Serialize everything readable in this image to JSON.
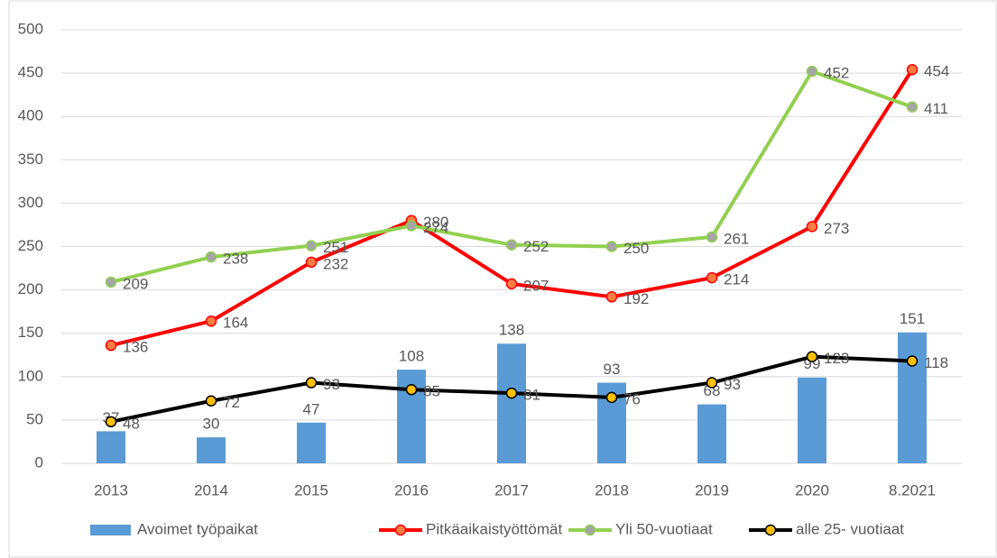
{
  "chart_data": {
    "type": "bar",
    "categories": [
      "2013",
      "2014",
      "2015",
      "2016",
      "2017",
      "2018",
      "2019",
      "2020",
      "8.2021"
    ],
    "series": [
      {
        "name": "Avoimet työpaikat",
        "type": "bar",
        "color": "#5b9bd5",
        "values": [
          37,
          30,
          47,
          108,
          138,
          93,
          68,
          99,
          151
        ]
      },
      {
        "name": "Pitkäaikaistyöttömät",
        "type": "line",
        "color": "#ff0000",
        "marker_color": "#ff7c43",
        "values": [
          136,
          164,
          232,
          280,
          207,
          192,
          214,
          273,
          454
        ]
      },
      {
        "name": "Yli 50-vuotiaat",
        "type": "line",
        "color": "#92d050",
        "marker_color": "#a5a5a5",
        "values": [
          209,
          238,
          251,
          274,
          252,
          250,
          261,
          452,
          411
        ]
      },
      {
        "name": "alle 25- vuotiaat",
        "type": "line",
        "color": "#000000",
        "marker_color": "#ffc000",
        "values": [
          48,
          72,
          93,
          85,
          81,
          76,
          93,
          123,
          118
        ]
      }
    ],
    "ylim": [
      0,
      500
    ],
    "yticks": [
      0,
      50,
      100,
      150,
      200,
      250,
      300,
      350,
      400,
      450,
      500
    ],
    "grid": true,
    "legend": "bottom"
  }
}
